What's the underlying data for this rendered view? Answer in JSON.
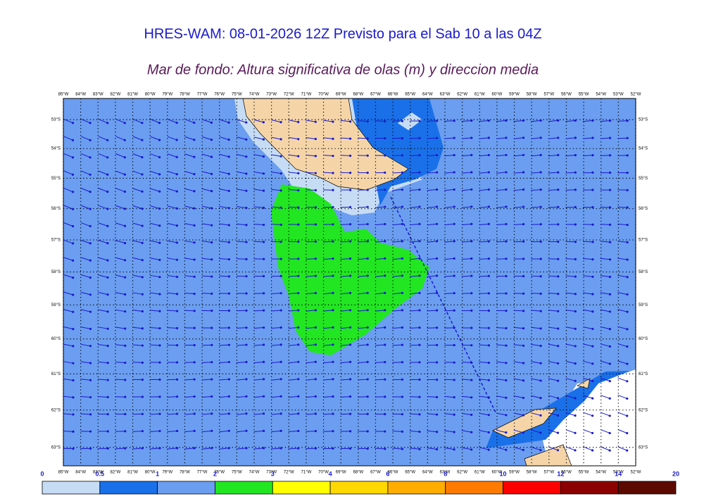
{
  "header": {
    "title": "HRES-WAM: 08-01-2026 12Z Previsto para el Sab 10 a las 04Z",
    "subtitle": "Mar de fondo: Altura significativa de olas (m) y direccion media"
  },
  "map": {
    "longitudes": [
      "85°W",
      "84°W",
      "83°W",
      "82°W",
      "81°W",
      "80°W",
      "79°W",
      "78°W",
      "77°W",
      "76°W",
      "75°W",
      "74°W",
      "73°W",
      "72°W",
      "71°W",
      "70°W",
      "69°W",
      "68°W",
      "67°W",
      "66°W",
      "65°W",
      "64°W",
      "63°W",
      "62°W",
      "61°W",
      "60°W",
      "59°W",
      "58°W",
      "57°W",
      "56°W",
      "55°W",
      "54°W",
      "53°W",
      "52°W"
    ],
    "latitudes": [
      "53°S",
      "54°S",
      "55°S",
      "56°S",
      "57°S",
      "58°S",
      "59°S",
      "60°S",
      "61°S",
      "62°S",
      "63°S"
    ]
  },
  "colorbar": {
    "labels": [
      "0",
      "0.5",
      "1",
      "2",
      "3",
      "4",
      "6",
      "8",
      "10",
      "12",
      "14",
      "20"
    ],
    "colors": [
      "#c6dcf5",
      "#1a70e8",
      "#6b9ef0",
      "#22e622",
      "#ffff00",
      "#ffd800",
      "#ffae00",
      "#ff7b00",
      "#ff0000",
      "#8b0000",
      "#5c0a00"
    ]
  }
}
